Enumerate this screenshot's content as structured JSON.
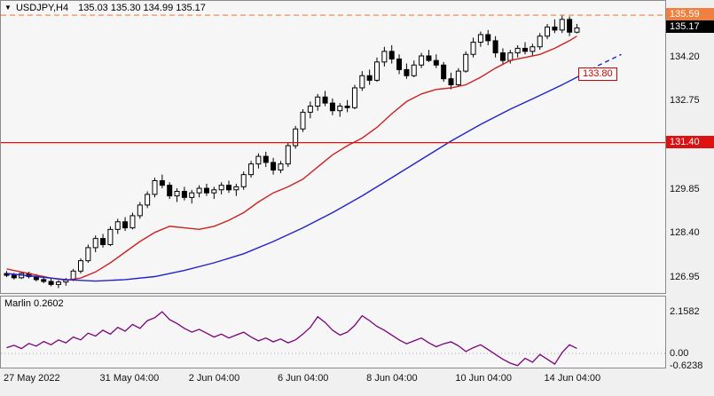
{
  "header": {
    "marker": "▼",
    "symbol": "USDJPY,H4",
    "ohlc": "135.03 135.30 134.99 135.17"
  },
  "indicator": {
    "label": "Marlin",
    "value": "0.2602"
  },
  "price_axis": {
    "ticks": [
      {
        "value": 134.2,
        "label": "134.20"
      },
      {
        "value": 132.75,
        "label": "132.75"
      },
      {
        "value": 129.85,
        "label": "129.85"
      },
      {
        "value": 128.4,
        "label": "128.40"
      },
      {
        "value": 126.95,
        "label": "126.95"
      }
    ],
    "badges": [
      {
        "name": "high",
        "label": "135.59",
        "value": 135.59,
        "bg": "#f08040"
      },
      {
        "name": "current",
        "label": "135.17",
        "value": 135.17,
        "bg": "#000000"
      },
      {
        "name": "level",
        "label": "131.40",
        "value": 131.4,
        "bg": "#dd1111"
      }
    ],
    "ma_target": {
      "label": "133.80",
      "value": 133.8
    }
  },
  "time_axis": {
    "labels": [
      {
        "text": "27 May 2022",
        "bar": 0
      },
      {
        "text": "31 May 04:00",
        "bar": 13
      },
      {
        "text": "2 Jun 04:00",
        "bar": 25
      },
      {
        "text": "6 Jun 04:00",
        "bar": 37
      },
      {
        "text": "8 Jun 04:00",
        "bar": 49
      },
      {
        "text": "10 Jun 04:00",
        "bar": 61
      },
      {
        "text": "14 Jun 04:00",
        "bar": 73
      }
    ]
  },
  "chart_data": [
    {
      "pane": "main",
      "type": "candlestick",
      "title": "USDJPY H4",
      "ylim": [
        126.43,
        136.0
      ],
      "ohlc": [
        [
          127.1,
          127.18,
          126.98,
          127.04
        ],
        [
          127.04,
          127.12,
          126.9,
          126.96
        ],
        [
          126.96,
          127.15,
          126.92,
          127.1
        ],
        [
          127.1,
          127.16,
          126.94,
          127.0
        ],
        [
          127.0,
          127.08,
          126.84,
          126.9
        ],
        [
          126.9,
          127.02,
          126.78,
          126.84
        ],
        [
          126.84,
          126.96,
          126.68,
          126.74
        ],
        [
          126.74,
          126.88,
          126.62,
          126.82
        ],
        [
          126.82,
          126.95,
          126.7,
          126.9
        ],
        [
          126.9,
          127.25,
          126.85,
          127.18
        ],
        [
          127.18,
          127.6,
          127.1,
          127.52
        ],
        [
          127.52,
          128.05,
          127.45,
          127.95
        ],
        [
          127.95,
          128.35,
          127.8,
          128.25
        ],
        [
          128.25,
          128.4,
          127.95,
          128.05
        ],
        [
          128.05,
          128.65,
          128.0,
          128.55
        ],
        [
          128.55,
          128.9,
          128.4,
          128.8
        ],
        [
          128.8,
          128.95,
          128.5,
          128.6
        ],
        [
          128.6,
          129.1,
          128.55,
          129.0
        ],
        [
          129.0,
          129.45,
          128.9,
          129.35
        ],
        [
          129.35,
          129.8,
          129.25,
          129.7
        ],
        [
          129.7,
          130.25,
          129.6,
          130.15
        ],
        [
          130.15,
          130.35,
          129.9,
          130.0
        ],
        [
          130.0,
          130.1,
          129.55,
          129.65
        ],
        [
          129.65,
          129.9,
          129.45,
          129.8
        ],
        [
          129.8,
          129.95,
          129.5,
          129.6
        ],
        [
          129.6,
          129.85,
          129.4,
          129.75
        ],
        [
          129.75,
          130.0,
          129.6,
          129.9
        ],
        [
          129.9,
          130.05,
          129.65,
          129.75
        ],
        [
          129.75,
          129.95,
          129.55,
          129.85
        ],
        [
          129.85,
          130.1,
          129.7,
          130.0
        ],
        [
          130.0,
          130.15,
          129.75,
          129.85
        ],
        [
          129.85,
          130.05,
          129.65,
          129.95
        ],
        [
          129.95,
          130.45,
          129.85,
          130.35
        ],
        [
          130.35,
          130.8,
          130.25,
          130.7
        ],
        [
          130.7,
          131.05,
          130.55,
          130.95
        ],
        [
          130.95,
          131.1,
          130.6,
          130.75
        ],
        [
          130.75,
          130.9,
          130.35,
          130.5
        ],
        [
          130.5,
          130.8,
          130.4,
          130.7
        ],
        [
          130.7,
          131.4,
          130.6,
          131.3
        ],
        [
          131.3,
          131.95,
          131.2,
          131.85
        ],
        [
          131.85,
          132.5,
          131.75,
          132.4
        ],
        [
          132.4,
          132.75,
          132.2,
          132.6
        ],
        [
          132.6,
          133.0,
          132.45,
          132.9
        ],
        [
          132.9,
          133.1,
          132.6,
          132.7
        ],
        [
          132.7,
          132.85,
          132.3,
          132.45
        ],
        [
          132.45,
          132.7,
          132.25,
          132.6
        ],
        [
          132.6,
          132.8,
          132.4,
          132.55
        ],
        [
          132.55,
          133.3,
          132.5,
          133.2
        ],
        [
          133.2,
          133.75,
          133.1,
          133.6
        ],
        [
          133.6,
          133.8,
          133.3,
          133.45
        ],
        [
          133.45,
          134.2,
          133.4,
          134.05
        ],
        [
          134.05,
          134.55,
          133.9,
          134.4
        ],
        [
          134.4,
          134.6,
          134.0,
          134.15
        ],
        [
          134.15,
          134.3,
          133.65,
          133.8
        ],
        [
          133.8,
          134.0,
          133.5,
          133.6
        ],
        [
          133.6,
          134.1,
          133.55,
          133.95
        ],
        [
          133.95,
          134.35,
          133.85,
          134.25
        ],
        [
          134.25,
          134.45,
          134.05,
          134.1
        ],
        [
          134.1,
          134.3,
          133.85,
          133.95
        ],
        [
          133.95,
          134.05,
          133.4,
          133.5
        ],
        [
          133.5,
          133.7,
          133.15,
          133.3
        ],
        [
          133.3,
          133.85,
          133.25,
          133.75
        ],
        [
          133.75,
          134.4,
          133.7,
          134.3
        ],
        [
          134.3,
          134.85,
          134.2,
          134.7
        ],
        [
          134.7,
          135.05,
          134.55,
          134.95
        ],
        [
          134.95,
          135.1,
          134.6,
          134.75
        ],
        [
          134.75,
          134.9,
          134.2,
          134.35
        ],
        [
          134.35,
          134.5,
          133.95,
          134.1
        ],
        [
          134.1,
          134.45,
          134.0,
          134.35
        ],
        [
          134.35,
          134.6,
          134.2,
          134.5
        ],
        [
          134.5,
          134.7,
          134.3,
          134.4
        ],
        [
          134.4,
          134.65,
          134.25,
          134.55
        ],
        [
          134.55,
          135.0,
          134.45,
          134.9
        ],
        [
          134.9,
          135.3,
          134.8,
          135.2
        ],
        [
          135.2,
          135.45,
          135.0,
          135.1
        ],
        [
          135.1,
          135.59,
          135.0,
          135.45
        ],
        [
          135.45,
          135.55,
          134.9,
          135.03
        ],
        [
          135.03,
          135.3,
          134.99,
          135.17
        ]
      ],
      "overlays": [
        {
          "name": "fast-ma",
          "color": "#cc2222",
          "dashed": false,
          "points": [
            [
              0,
              127.25
            ],
            [
              2,
              127.15
            ],
            [
              4,
              127.05
            ],
            [
              6,
              126.95
            ],
            [
              8,
              126.88
            ],
            [
              10,
              126.95
            ],
            [
              12,
              127.15
            ],
            [
              14,
              127.45
            ],
            [
              16,
              127.8
            ],
            [
              18,
              128.15
            ],
            [
              20,
              128.45
            ],
            [
              22,
              128.65
            ],
            [
              24,
              128.6
            ],
            [
              26,
              128.55
            ],
            [
              28,
              128.65
            ],
            [
              30,
              128.85
            ],
            [
              32,
              129.1
            ],
            [
              34,
              129.45
            ],
            [
              36,
              129.75
            ],
            [
              38,
              129.95
            ],
            [
              40,
              130.2
            ],
            [
              42,
              130.6
            ],
            [
              44,
              131.0
            ],
            [
              46,
              131.3
            ],
            [
              48,
              131.55
            ],
            [
              50,
              131.9
            ],
            [
              52,
              132.35
            ],
            [
              54,
              132.75
            ],
            [
              56,
              133.0
            ],
            [
              58,
              133.15
            ],
            [
              60,
              133.2
            ],
            [
              62,
              133.3
            ],
            [
              64,
              133.55
            ],
            [
              66,
              133.85
            ],
            [
              68,
              134.1
            ],
            [
              70,
              134.2
            ],
            [
              72,
              134.3
            ],
            [
              74,
              134.5
            ],
            [
              76,
              134.75
            ],
            [
              77,
              134.9
            ]
          ]
        },
        {
          "name": "slow-ma",
          "color": "#2222cc",
          "dashed": false,
          "points": [
            [
              0,
              127.1
            ],
            [
              4,
              127.0
            ],
            [
              8,
              126.9
            ],
            [
              12,
              126.85
            ],
            [
              16,
              126.9
            ],
            [
              20,
              127.0
            ],
            [
              24,
              127.2
            ],
            [
              28,
              127.45
            ],
            [
              32,
              127.75
            ],
            [
              36,
              128.15
            ],
            [
              40,
              128.6
            ],
            [
              44,
              129.1
            ],
            [
              48,
              129.65
            ],
            [
              52,
              130.25
            ],
            [
              56,
              130.85
            ],
            [
              60,
              131.45
            ],
            [
              64,
              132.0
            ],
            [
              68,
              132.5
            ],
            [
              72,
              132.95
            ],
            [
              75,
              133.3
            ],
            [
              77,
              133.55
            ]
          ]
        },
        {
          "name": "slow-ma-projection",
          "color": "#2222cc",
          "dashed": true,
          "points": [
            [
              77,
              133.55
            ],
            [
              80,
              133.95
            ],
            [
              83,
              134.3
            ]
          ]
        }
      ],
      "levels": [
        {
          "value": 135.59,
          "color": "#f08040",
          "style": "dashed"
        },
        {
          "value": 131.4,
          "color": "#dd1111",
          "style": "solid"
        }
      ]
    },
    {
      "pane": "indicator",
      "type": "line",
      "title": "Marlin",
      "current": 0.2602,
      "color": "#7a007a",
      "ylim": [
        -0.73,
        2.85
      ],
      "zero_line": true,
      "ticks": [
        {
          "value": 2.1582,
          "label": "2.1582"
        },
        {
          "value": 0,
          "label": "0.00"
        },
        {
          "value": -0.6238,
          "label": "-0.6238"
        }
      ],
      "values": [
        0.3,
        0.42,
        0.25,
        0.52,
        0.38,
        0.62,
        0.45,
        0.7,
        0.55,
        0.85,
        0.7,
        1.05,
        0.9,
        1.2,
        1.0,
        1.35,
        1.15,
        1.5,
        1.3,
        1.7,
        1.85,
        2.1582,
        1.75,
        1.55,
        1.3,
        1.1,
        1.25,
        1.05,
        0.85,
        1.0,
        0.8,
        0.95,
        1.1,
        0.85,
        0.65,
        0.8,
        0.6,
        0.75,
        0.55,
        0.7,
        1.0,
        1.35,
        1.9,
        1.6,
        1.2,
        0.95,
        1.1,
        1.45,
        1.95,
        1.7,
        1.4,
        1.2,
        0.95,
        0.7,
        0.5,
        0.65,
        0.8,
        0.55,
        0.35,
        0.5,
        0.6,
        0.4,
        0.1,
        0.3,
        0.45,
        0.2,
        -0.05,
        -0.3,
        -0.5,
        -0.6238,
        -0.25,
        -0.45,
        -0.05,
        -0.3,
        -0.55,
        0.05,
        0.45,
        0.2602
      ]
    }
  ]
}
